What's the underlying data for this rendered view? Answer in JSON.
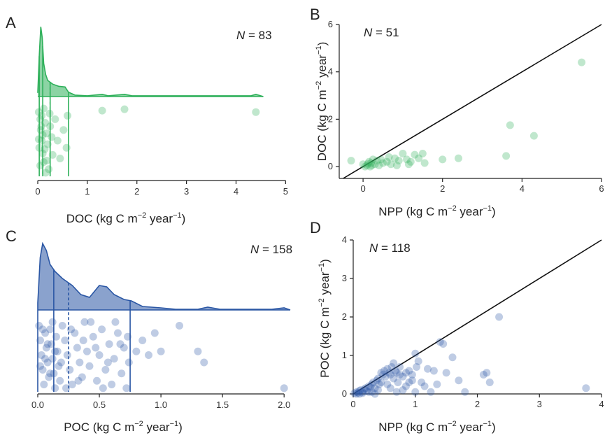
{
  "chart_data": [
    {
      "panel": "A",
      "type": "scatter",
      "n_label": "N",
      "n_value": "= 83",
      "xlabel": "DOC (kg C m",
      "xlabel_sup": "−2",
      "xlabel_tail": " year",
      "xlabel_sup2": "−1",
      "xlabel_close": ")",
      "xlim": [
        0,
        4.6
      ],
      "xticks": [
        0,
        1,
        2,
        3,
        4,
        5
      ],
      "color": "#2eb05a",
      "fill_color": "#2eb05a",
      "quantile_lines": [
        0.03,
        0.1,
        0.25,
        0.62
      ],
      "median_line": 0.25,
      "density": [
        [
          0,
          0.05
        ],
        [
          0.03,
          0.55
        ],
        [
          0.06,
          0.95
        ],
        [
          0.09,
          0.8
        ],
        [
          0.12,
          0.45
        ],
        [
          0.16,
          0.3
        ],
        [
          0.2,
          0.22
        ],
        [
          0.3,
          0.17
        ],
        [
          0.42,
          0.14
        ],
        [
          0.55,
          0.13
        ],
        [
          0.62,
          0.06
        ],
        [
          0.75,
          0.02
        ],
        [
          1.0,
          0.01
        ],
        [
          1.3,
          0.03
        ],
        [
          1.42,
          0.01
        ],
        [
          1.75,
          0.03
        ],
        [
          1.9,
          0.01
        ],
        [
          4.3,
          0.01
        ],
        [
          4.4,
          0.03
        ],
        [
          4.55,
          0.0
        ]
      ],
      "points": [
        [
          0.02,
          0.1
        ],
        [
          0.05,
          0.2
        ],
        [
          0.06,
          0.35
        ],
        [
          0.08,
          0.5
        ],
        [
          0.1,
          0.68
        ],
        [
          0.12,
          0.8
        ],
        [
          0.03,
          0.6
        ],
        [
          0.15,
          0.25
        ],
        [
          0.18,
          0.4
        ],
        [
          0.2,
          0.55
        ],
        [
          0.22,
          0.9
        ],
        [
          0.25,
          0.3
        ],
        [
          0.28,
          0.45
        ],
        [
          0.3,
          0.7
        ],
        [
          0.05,
          0.85
        ],
        [
          0.08,
          0.15
        ],
        [
          0.1,
          0.42
        ],
        [
          0.14,
          0.62
        ],
        [
          0.35,
          0.2
        ],
        [
          0.4,
          0.5
        ],
        [
          0.45,
          0.75
        ],
        [
          0.52,
          0.35
        ],
        [
          0.58,
          0.6
        ],
        [
          0.6,
          0.15
        ],
        [
          0.12,
          0.05
        ],
        [
          0.02,
          0.48
        ],
        [
          0.18,
          0.78
        ],
        [
          0.24,
          0.12
        ],
        [
          0.07,
          0.3
        ],
        [
          0.16,
          0.95
        ],
        [
          1.3,
          0.08
        ],
        [
          1.75,
          0.06
        ],
        [
          4.4,
          0.1
        ]
      ]
    },
    {
      "panel": "B",
      "type": "scatter",
      "n_label": "N",
      "n_value": "= 51",
      "xlabel": "NPP (kg C m",
      "xlabel_sup": "−2",
      "xlabel_tail": " year",
      "xlabel_sup2": "−1",
      "xlabel_close": ")",
      "ylabel": "DOC (kg C m",
      "ylabel_sup": "−2",
      "ylabel_tail": " year",
      "ylabel_sup2": "−1",
      "ylabel_close": ")",
      "xlim": [
        -0.6,
        6
      ],
      "ylim": [
        -0.5,
        6
      ],
      "xticks": [
        0,
        2,
        4,
        6
      ],
      "yticks": [
        0,
        2,
        4,
        6
      ],
      "color": "#2eb05a",
      "one_to_one_line": true,
      "points": [
        [
          -0.3,
          0.25
        ],
        [
          0.0,
          0.1
        ],
        [
          0.1,
          0.05
        ],
        [
          0.15,
          0.2
        ],
        [
          0.2,
          0.15
        ],
        [
          0.25,
          0.3
        ],
        [
          0.3,
          0.1
        ],
        [
          0.35,
          0.25
        ],
        [
          0.4,
          0.05
        ],
        [
          0.5,
          0.15
        ],
        [
          0.6,
          0.2
        ],
        [
          0.7,
          0.1
        ],
        [
          0.8,
          0.35
        ],
        [
          0.9,
          0.25
        ],
        [
          1.0,
          0.55
        ],
        [
          1.1,
          0.3
        ],
        [
          1.2,
          0.2
        ],
        [
          1.3,
          0.5
        ],
        [
          1.4,
          0.35
        ],
        [
          1.5,
          0.55
        ],
        [
          1.55,
          0.15
        ],
        [
          2.0,
          0.3
        ],
        [
          2.4,
          0.35
        ],
        [
          3.6,
          0.45
        ],
        [
          3.7,
          1.75
        ],
        [
          4.3,
          1.3
        ],
        [
          5.5,
          4.4
        ],
        [
          0.05,
          0.0
        ],
        [
          0.12,
          0.12
        ],
        [
          0.22,
          0.05
        ],
        [
          0.45,
          0.3
        ],
        [
          0.65,
          0.4
        ],
        [
          1.15,
          0.1
        ],
        [
          0.85,
          0.05
        ],
        [
          0.18,
          0.0
        ]
      ]
    },
    {
      "panel": "C",
      "type": "scatter",
      "n_label": "N",
      "n_value": "= 158",
      "xlabel": "POC (kg C m",
      "xlabel_sup": "−2",
      "xlabel_tail": " year",
      "xlabel_sup2": "−1",
      "xlabel_close": ")",
      "xlim": [
        0,
        2.05
      ],
      "xticks": [
        "0.0",
        "0.5",
        "1.0",
        "1.5",
        "2.0"
      ],
      "color": "#2a56a4",
      "quantile_lines": [
        0.0,
        0.13,
        0.75
      ],
      "median_line": 0.25,
      "density": [
        [
          0,
          0.1
        ],
        [
          0.02,
          0.75
        ],
        [
          0.04,
          0.95
        ],
        [
          0.07,
          0.85
        ],
        [
          0.1,
          0.65
        ],
        [
          0.14,
          0.55
        ],
        [
          0.2,
          0.45
        ],
        [
          0.28,
          0.35
        ],
        [
          0.35,
          0.22
        ],
        [
          0.42,
          0.18
        ],
        [
          0.5,
          0.35
        ],
        [
          0.56,
          0.33
        ],
        [
          0.62,
          0.22
        ],
        [
          0.7,
          0.15
        ],
        [
          0.76,
          0.13
        ],
        [
          0.85,
          0.05
        ],
        [
          1.0,
          0.03
        ],
        [
          1.12,
          0.01
        ],
        [
          1.3,
          0.01
        ],
        [
          1.38,
          0.04
        ],
        [
          1.48,
          0.01
        ],
        [
          1.9,
          0.01
        ],
        [
          2.0,
          0.03
        ],
        [
          2.05,
          0.0
        ]
      ],
      "points": [
        [
          0.01,
          0.1
        ],
        [
          0.02,
          0.3
        ],
        [
          0.03,
          0.5
        ],
        [
          0.04,
          0.7
        ],
        [
          0.05,
          0.9
        ],
        [
          0.06,
          0.2
        ],
        [
          0.07,
          0.4
        ],
        [
          0.08,
          0.6
        ],
        [
          0.09,
          0.8
        ],
        [
          0.1,
          0.15
        ],
        [
          0.11,
          0.35
        ],
        [
          0.12,
          0.55
        ],
        [
          0.13,
          0.75
        ],
        [
          0.14,
          0.95
        ],
        [
          0.15,
          0.25
        ],
        [
          0.16,
          0.45
        ],
        [
          0.17,
          0.65
        ],
        [
          0.18,
          0.85
        ],
        [
          0.2,
          0.1
        ],
        [
          0.22,
          0.3
        ],
        [
          0.24,
          0.5
        ],
        [
          0.26,
          0.7
        ],
        [
          0.28,
          0.9
        ],
        [
          0.3,
          0.2
        ],
        [
          0.32,
          0.4
        ],
        [
          0.34,
          0.6
        ],
        [
          0.36,
          0.8
        ],
        [
          0.38,
          0.05
        ],
        [
          0.4,
          0.45
        ],
        [
          0.42,
          0.65
        ],
        [
          0.45,
          0.25
        ],
        [
          0.48,
          0.85
        ],
        [
          0.5,
          0.5
        ],
        [
          0.52,
          0.15
        ],
        [
          0.55,
          0.7
        ],
        [
          0.58,
          0.35
        ],
        [
          0.6,
          0.9
        ],
        [
          0.62,
          0.55
        ],
        [
          0.65,
          0.2
        ],
        [
          0.68,
          0.75
        ],
        [
          0.7,
          0.4
        ],
        [
          0.72,
          0.95
        ],
        [
          0.74,
          0.6
        ],
        [
          0.8,
          0.45
        ],
        [
          0.85,
          0.3
        ],
        [
          0.9,
          0.5
        ],
        [
          0.95,
          0.2
        ],
        [
          1.0,
          0.45
        ],
        [
          1.15,
          0.1
        ],
        [
          1.3,
          0.45
        ],
        [
          1.35,
          0.6
        ],
        [
          2.0,
          0.95
        ],
        [
          0.02,
          0.65
        ],
        [
          0.04,
          0.15
        ],
        [
          0.06,
          0.55
        ],
        [
          0.08,
          0.35
        ],
        [
          0.1,
          0.75
        ],
        [
          0.12,
          0.05
        ],
        [
          0.14,
          0.45
        ],
        [
          0.19,
          0.6
        ],
        [
          0.23,
          0.95
        ],
        [
          0.27,
          0.15
        ],
        [
          0.33,
          0.85
        ],
        [
          0.37,
          0.3
        ],
        [
          0.43,
          0.05
        ],
        [
          0.47,
          0.4
        ],
        [
          0.53,
          0.95
        ],
        [
          0.57,
          0.6
        ],
        [
          0.63,
          0.05
        ],
        [
          0.67,
          0.35
        ],
        [
          0.73,
          0.25
        ]
      ]
    },
    {
      "panel": "D",
      "type": "scatter",
      "n_label": "N",
      "n_value": "= 118",
      "xlabel": "NPP (kg C m",
      "xlabel_sup": "−2",
      "xlabel_tail": " year",
      "xlabel_sup2": "−1",
      "xlabel_close": ")",
      "ylabel": "POC (kg C m",
      "ylabel_sup": "−2",
      "ylabel_tail": " year",
      "ylabel_sup2": "−1",
      "ylabel_close": ")",
      "xlim": [
        0,
        4
      ],
      "ylim": [
        0,
        4
      ],
      "xticks": [
        0,
        1,
        2,
        3,
        4
      ],
      "yticks": [
        0,
        1,
        2,
        3,
        4
      ],
      "color": "#2a56a4",
      "one_to_one_line": true,
      "points": [
        [
          0.02,
          0.02
        ],
        [
          0.05,
          0.05
        ],
        [
          0.08,
          0.03
        ],
        [
          0.1,
          0.08
        ],
        [
          0.12,
          0.1
        ],
        [
          0.15,
          0.05
        ],
        [
          0.18,
          0.12
        ],
        [
          0.2,
          0.15
        ],
        [
          0.22,
          0.08
        ],
        [
          0.25,
          0.2
        ],
        [
          0.28,
          0.18
        ],
        [
          0.3,
          0.25
        ],
        [
          0.32,
          0.3
        ],
        [
          0.35,
          0.15
        ],
        [
          0.38,
          0.35
        ],
        [
          0.4,
          0.4
        ],
        [
          0.42,
          0.25
        ],
        [
          0.45,
          0.55
        ],
        [
          0.48,
          0.5
        ],
        [
          0.5,
          0.6
        ],
        [
          0.52,
          0.45
        ],
        [
          0.55,
          0.65
        ],
        [
          0.58,
          0.55
        ],
        [
          0.6,
          0.5
        ],
        [
          0.62,
          0.7
        ],
        [
          0.65,
          0.4
        ],
        [
          0.68,
          0.6
        ],
        [
          0.7,
          0.55
        ],
        [
          0.72,
          0.3
        ],
        [
          0.75,
          0.5
        ],
        [
          0.8,
          0.45
        ],
        [
          0.85,
          0.2
        ],
        [
          0.9,
          0.6
        ],
        [
          0.95,
          0.5
        ],
        [
          1.0,
          1.05
        ],
        [
          1.05,
          0.85
        ],
        [
          1.1,
          0.3
        ],
        [
          1.2,
          0.65
        ],
        [
          1.3,
          0.6
        ],
        [
          1.4,
          1.35
        ],
        [
          1.45,
          1.3
        ],
        [
          1.5,
          0.55
        ],
        [
          1.6,
          0.95
        ],
        [
          1.7,
          0.35
        ],
        [
          1.8,
          0.05
        ],
        [
          2.1,
          0.5
        ],
        [
          2.15,
          0.55
        ],
        [
          2.2,
          0.3
        ],
        [
          2.35,
          2.0
        ],
        [
          3.75,
          0.15
        ],
        [
          0.05,
          0.0
        ],
        [
          0.1,
          0.0
        ],
        [
          0.15,
          0.02
        ],
        [
          0.3,
          0.05
        ],
        [
          0.4,
          0.1
        ],
        [
          0.6,
          0.15
        ],
        [
          0.7,
          0.05
        ],
        [
          0.8,
          0.1
        ],
        [
          0.9,
          0.3
        ],
        [
          1.0,
          0.05
        ],
        [
          1.15,
          0.2
        ],
        [
          1.25,
          0.05
        ],
        [
          1.35,
          0.25
        ],
        [
          0.25,
          0.05
        ],
        [
          0.35,
          0.0
        ],
        [
          0.45,
          0.3
        ],
        [
          0.55,
          0.25
        ],
        [
          0.65,
          0.8
        ],
        [
          0.75,
          0.7
        ],
        [
          0.85,
          0.55
        ],
        [
          0.95,
          0.35
        ],
        [
          1.02,
          0.7
        ]
      ]
    }
  ]
}
